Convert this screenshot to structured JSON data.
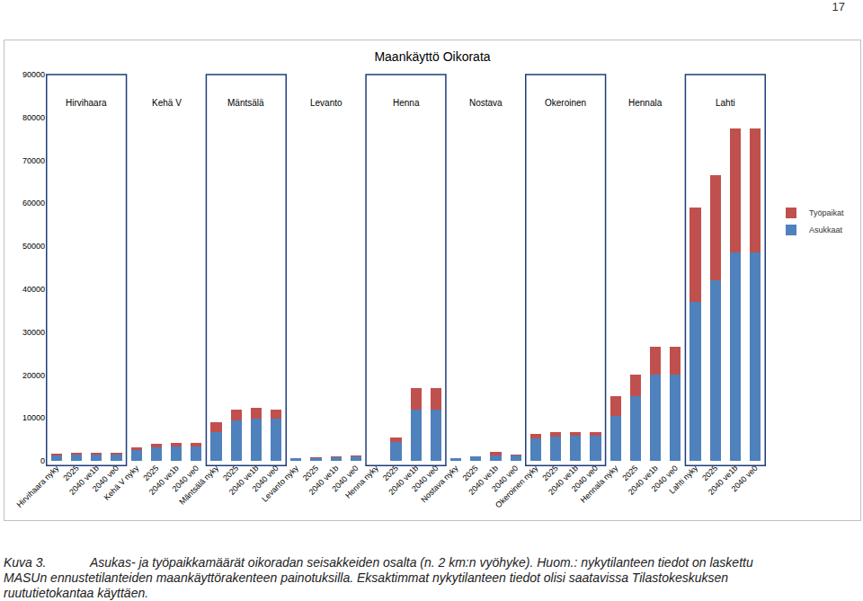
{
  "chart_data": {
    "type": "bar",
    "title": "Maankäyttö Oikorata",
    "stacked": true,
    "grid": false,
    "legend": "right",
    "groups": [
      "Hirvihaara",
      "Kehä V",
      "Mäntsälä",
      "Levanto",
      "Henna",
      "Nostava",
      "Okeroinen",
      "Hennala",
      "Lahti"
    ],
    "categories": [
      "Hirvihaara nyky",
      "2025",
      "2040 ve1b",
      "2040 ve0",
      "Kehä V nyky",
      "2025",
      "2040 ve1b",
      "2040 ve0",
      "Mäntsälä nyky",
      "2025",
      "2040 ve1b",
      "2040 ve0",
      "Levanto nyky",
      "2025",
      "2040 ve1b",
      "2040 ve0",
      "Henna nyky",
      "2025",
      "2040 ve1b",
      "2040 ve0",
      "Nostava nyky",
      "2025",
      "2040 ve1b",
      "2040 ve0",
      "Okeroinen nyky",
      "2025",
      "2040 ve1b",
      "2040 ve0",
      "Hennala nyky",
      "2025",
      "2040 ve1b",
      "2040 ve0",
      "Lahti nyky",
      "2025",
      "2040 ve1b",
      "2040 ve0"
    ],
    "series": [
      {
        "name": "Asukkaat",
        "color": "#4f81bd",
        "values": [
          1300,
          1500,
          1500,
          1500,
          2500,
          3200,
          3300,
          3300,
          6700,
          9500,
          9800,
          9800,
          600,
          700,
          800,
          1000,
          0,
          4500,
          12000,
          12000,
          600,
          1000,
          1300,
          1200,
          5300,
          5700,
          5800,
          5800,
          10500,
          15000,
          20000,
          20000,
          37000,
          42000,
          48500,
          48500
        ]
      },
      {
        "name": "Työpaikat",
        "color": "#c0504d",
        "values": [
          400,
          400,
          400,
          400,
          600,
          800,
          900,
          800,
          2300,
          2500,
          2500,
          2200,
          100,
          100,
          200,
          200,
          0,
          1000,
          5000,
          5000,
          100,
          100,
          800,
          200,
          1000,
          900,
          900,
          900,
          4500,
          5000,
          6500,
          6500,
          22000,
          24500,
          29000,
          29000
        ]
      }
    ],
    "ylim": [
      0,
      90000
    ],
    "yticks": [
      0,
      10000,
      20000,
      30000,
      40000,
      50000,
      60000,
      70000,
      80000,
      90000
    ]
  },
  "page": {
    "page_number": "17",
    "caption_label": "Kuva 3.",
    "caption_text": "Asukas- ja työpaikkamäärät oikoradan seisakkeiden osalta (n. 2 km:n vyöhyke). Huom.: nykytilanteen tiedot on laskettu MASUn ennustetilanteiden maankäyttörakenteen painotuksilla. Eksaktimmat nykytilanteen tiedot olisi saatavissa Tilastokeskuksen ruututietokantaa käyttäen."
  }
}
